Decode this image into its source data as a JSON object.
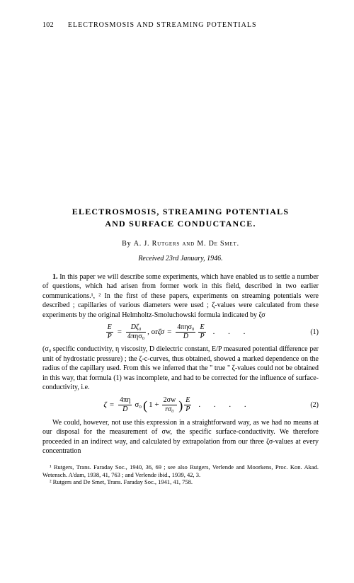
{
  "header": {
    "page_number": "102",
    "running_head": "ELECTROSMOSIS AND STREAMING POTENTIALS"
  },
  "title": {
    "line1": "ELECTROSMOSIS, STREAMING POTENTIALS",
    "line2": "AND SURFACE CONDUCTANCE."
  },
  "byline": {
    "by": "By",
    "author1": "A. J. Rutgers",
    "and": "and",
    "author2": "M. De Smet."
  },
  "received": "Received 23rd January, 1946.",
  "para1_lead": "1.",
  "para1": " In this paper we will describe some experiments, which have enabled us to settle a number of questions, which had arisen from former work in this field, described in two earlier communications.¹, ²  In the first of these papers, experiments on streaming potentials were described ; capillaries of various diameters were used ; ζ-values were calculated from these experiments by the original Helmholtz-Smoluchowski formula indicated by ζσ",
  "eq1": {
    "lhs1_num": "E",
    "lhs1_den": "P",
    "eq": "=",
    "rhs1_num": "Dζ₀",
    "rhs1_den": "4πησ₀",
    "comma_or": ", or ",
    "lhs2": "ζσ",
    "rhs2_num": "4πησ₀",
    "rhs2_den": "D",
    "rhs2b_num": "E",
    "rhs2b_den": "P",
    "dots": ". . .",
    "num": "(1)"
  },
  "para2": "(σ₀ specific conductivity, η viscosity, D dielectric constant, E/P measured potential difference per unit of hydrostatic pressure) ; the ζ-c-curves, thus obtained, showed a marked dependence on the radius of the capillary used. From this we inferred that the \" true \" ζ-values could not be obtained in this way, that formula (1) was incomplete, and had to be corrected for the influence of surface-conductivity, i.e.",
  "eq2": {
    "lhs": "ζ",
    "eq": "=",
    "coef_num": "4πη",
    "coef_den": "D",
    "sigma": "σ₀",
    "paren_l": "(",
    "one": "1 +",
    "inner_num": "2σw",
    "inner_den": "rσ₀",
    "paren_r": ")",
    "tail_num": "E",
    "tail_den": "P",
    "dots": ". . . .",
    "num": "(2)"
  },
  "para3": "We could, however, not use this expression in a straightforward way, as we had no means at our disposal for the measurement of σw, the specific surface-conductivity. We therefore proceeded in an indirect way, and calculated by extrapolation from our three ζσ-values at every concentration",
  "footnotes": {
    "f1": "¹ Rutgers, Trans. Faraday Soc., 1940, 36, 69 ; see also Rutgers, Verlende and Moorkens, Proc. Kon. Akad. Wetensch. A'dam, 1938, 41, 763 ; and Verlende ibid., 1939, 42, 3.",
    "f2": "² Rutgers and De Smet, Trans. Faraday Soc., 1941, 41, 758."
  }
}
